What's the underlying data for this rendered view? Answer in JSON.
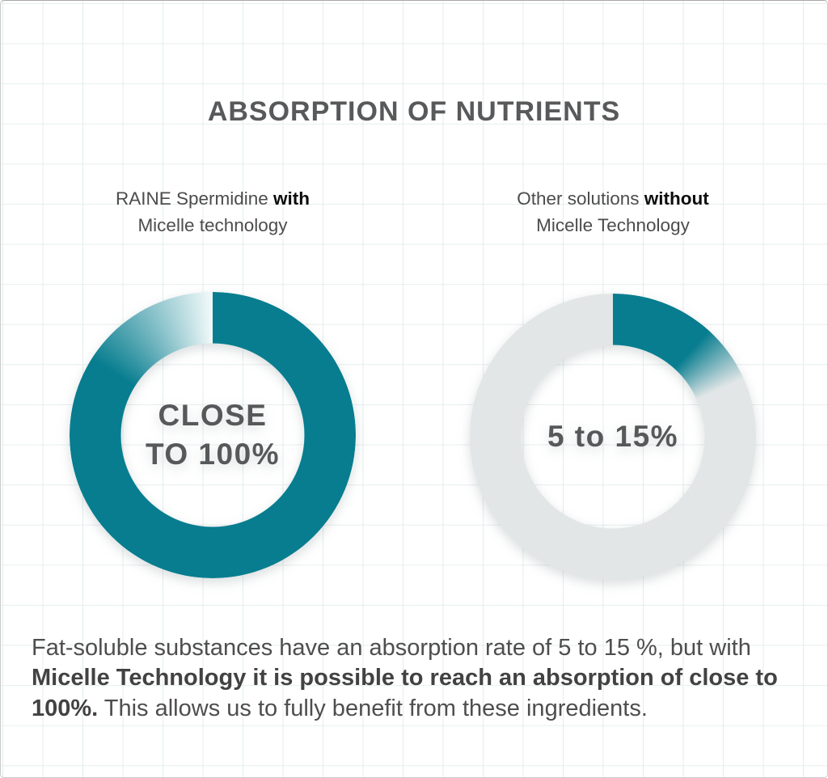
{
  "title": "ABSORPTION OF NUTRIENTS",
  "colors": {
    "accent_teal": "#077d8f",
    "track_gray": "#e2e6e7",
    "gradient_light": "#f1f9f9",
    "heading_text": "#58595b",
    "body_text": "#4e4e4e"
  },
  "labels": {
    "left": {
      "line1_normal": "RAINE Spermidine ",
      "line1_bold": "with",
      "line2": "Micelle technology"
    },
    "right": {
      "line1_normal": "Other solutions ",
      "line1_bold": "without",
      "line2": "Micelle Technology"
    }
  },
  "chart_data": [
    {
      "type": "pie",
      "variant": "donut",
      "label": "RAINE Spermidine with Micelle technology",
      "center_label_lines": [
        "CLOSE",
        "TO 100%"
      ],
      "value_text": "close to 100%",
      "value_percent": 100,
      "ring_start_deg": 0,
      "gradient_stops": [
        [
          "#077d8f",
          0
        ],
        [
          "#077d8f",
          302
        ],
        [
          "#f1f9f9",
          359.6
        ]
      ]
    },
    {
      "type": "pie",
      "variant": "donut",
      "label": "Other solutions without Micelle Technology",
      "center_label_lines": [
        "5 to 15%"
      ],
      "value_text": "5 to 15%",
      "value_percent_range": [
        5,
        15
      ],
      "ring_start_deg": 0,
      "gradient_stops": [
        [
          "#077d8f",
          0
        ],
        [
          "#077d8f",
          42
        ],
        [
          "#e2e6e7",
          66
        ],
        [
          "#e2e6e7",
          360
        ]
      ]
    }
  ],
  "paragraph": {
    "normal1": "Fat-soluble substances have an absorption rate of 5 to 15 %, but with ",
    "bold": "Micelle Technology it is possible to reach an absorption of close to 100%.",
    "normal2": " This allows us to fully benefit from these ingredients."
  }
}
